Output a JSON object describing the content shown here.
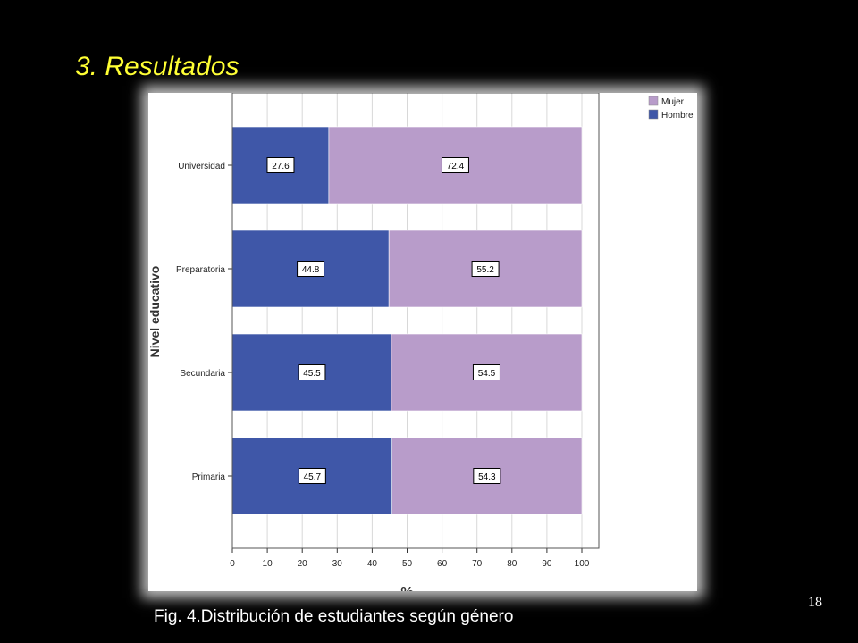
{
  "slide": {
    "title": "3. Resultados",
    "caption": "Fig. 4.Distribución de estudiantes según género",
    "page_number": "18"
  },
  "chart_data": {
    "type": "bar",
    "orientation": "horizontal",
    "stacked": true,
    "categories": [
      "Universidad",
      "Preparatoria",
      "Secundaria",
      "Primaria"
    ],
    "series": [
      {
        "name": "Hombre",
        "values": [
          27.6,
          44.8,
          45.5,
          45.7
        ],
        "color": "#3f57a8"
      },
      {
        "name": "Mujer",
        "values": [
          72.4,
          55.2,
          54.5,
          54.3
        ],
        "color": "#b89cca"
      }
    ],
    "xlabel": "%",
    "ylabel": "Nivel educativo",
    "xlim": [
      0,
      100
    ],
    "xticks": [
      "0",
      "10",
      "20",
      "30",
      "40",
      "50",
      "60",
      "70",
      "80",
      "90",
      "100"
    ],
    "grid": true,
    "legend": "top-right",
    "legend_order": [
      "Mujer",
      "Hombre"
    ]
  }
}
